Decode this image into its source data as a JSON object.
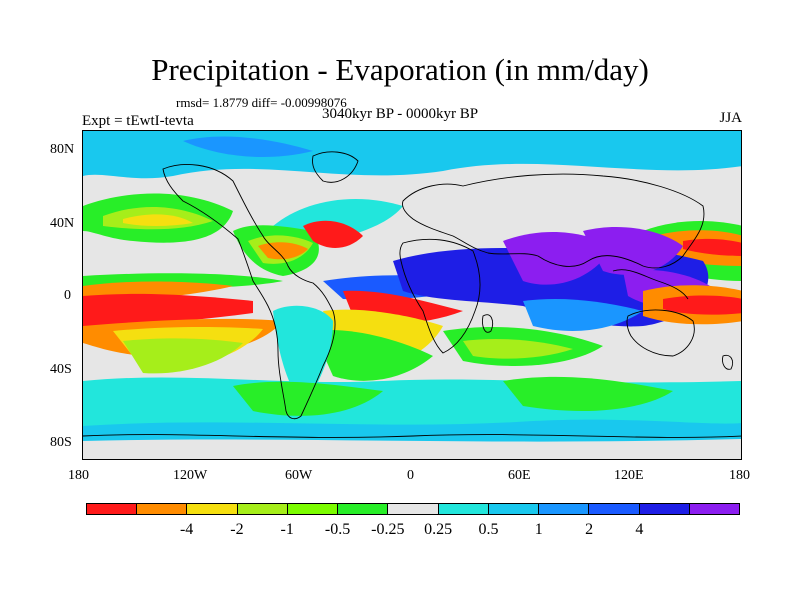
{
  "title": "Precipitation - Evaporation (in mm/day)",
  "stats": "rmsd= 1.8779 diff= -0.00998076",
  "period": "3040kyr BP - 0000kyr BP",
  "experiment": "Expt = tEwtI-tevta",
  "season": "JJA",
  "lat_ticks": [
    "80N",
    "40N",
    "0",
    "40S",
    "80S"
  ],
  "lon_ticks": [
    "180",
    "120W",
    "60W",
    "0",
    "60E",
    "120E",
    "180"
  ],
  "colorbar": {
    "colors": [
      "#ff1a1a",
      "#ff8c00",
      "#f5df10",
      "#a6ee1a",
      "#7cfc00",
      "#28ee28",
      "#e6e6e6",
      "#22e6dc",
      "#19c8ee",
      "#1a96ff",
      "#1a5aff",
      "#1e1ee6",
      "#8c1ef0"
    ],
    "labels": [
      "-4",
      "-2",
      "-1",
      "-0.5",
      "-0.25",
      "0.25",
      "0.5",
      "1",
      "2",
      "4"
    ]
  }
}
